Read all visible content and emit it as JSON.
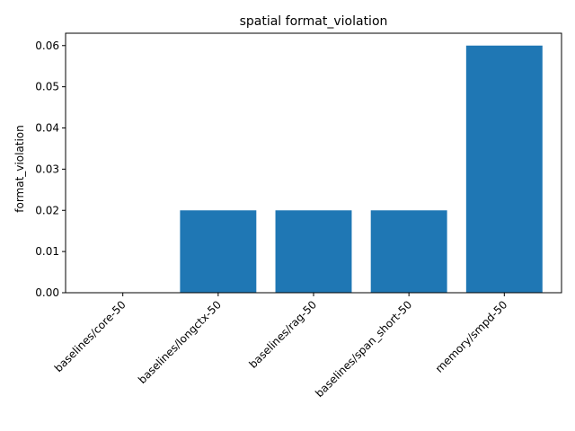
{
  "chart_data": {
    "type": "bar",
    "title": "spatial format_violation",
    "xlabel": "",
    "ylabel": "format_violation",
    "categories": [
      "baselines/core-50",
      "baselines/longctx-50",
      "baselines/rag-50",
      "baselines/span_short-50",
      "memory/smpd-50"
    ],
    "values": [
      0.0,
      0.02,
      0.02,
      0.02,
      0.06
    ],
    "ylim": [
      0,
      0.063
    ],
    "yticks": [
      "0.00",
      "0.01",
      "0.02",
      "0.03",
      "0.04",
      "0.05",
      "0.06"
    ],
    "grid": false,
    "bar_color": "#1f77b4"
  }
}
